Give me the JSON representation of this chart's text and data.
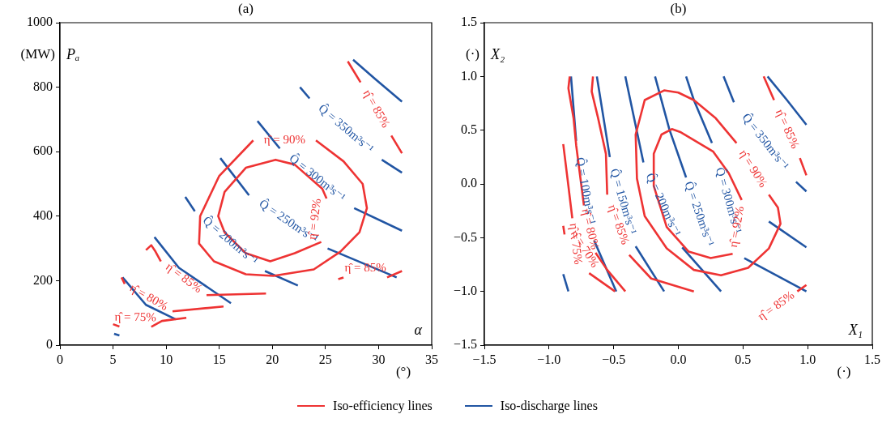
{
  "chart_data": [
    {
      "type": "line",
      "title": "(a)",
      "xlabel": "(°)",
      "ylabel": "(MW)",
      "xlim": [
        0,
        35
      ],
      "ylim": [
        0,
        1000
      ],
      "xticks": [
        0,
        5,
        10,
        15,
        20,
        25,
        30,
        35
      ],
      "yticks": [
        0,
        200,
        400,
        600,
        800,
        1000
      ],
      "legend": "bottom",
      "series": [
        {
          "name": "Iso-efficiency lines",
          "color": "#ee3333",
          "x": [
            24.1,
            26.7,
            28.5,
            28.9,
            28.2,
            26.4,
            23.9,
            20.1,
            17.5,
            14.5,
            13.1,
            13.2,
            15.0,
            18.2
          ],
          "values": [
            635,
            570,
            500,
            425,
            350,
            290,
            235,
            215,
            220,
            260,
            315,
            400,
            525,
            635
          ]
        },
        {
          "color": "#ee3333",
          "x": [
            25.1,
            24.7,
            22.1,
            20.3,
            17.5,
            15.5,
            14.9,
            15.5,
            17.5,
            19.8,
            22.1,
            24.6
          ],
          "values": [
            455,
            485,
            560,
            575,
            550,
            475,
            400,
            350,
            285,
            260,
            285,
            320
          ]
        },
        {
          "color": "#ee3333",
          "x": [
            27.1,
            28.3,
            null,
            31.2,
            32.2
          ],
          "values": [
            880,
            815,
            null,
            650,
            595
          ]
        },
        {
          "color": "#ee3333",
          "x": [
            26.2,
            26.7,
            null,
            30.8,
            32.2
          ],
          "values": [
            205,
            210,
            null,
            210,
            230
          ]
        },
        {
          "color": "#ee3333",
          "x": [
            8.1,
            8.6,
            9.0,
            9.5,
            null,
            13.8,
            19.4
          ],
          "values": [
            295,
            310,
            290,
            260,
            null,
            155,
            160
          ]
        },
        {
          "color": "#ee3333",
          "x": [
            5.8,
            6.1,
            null,
            10.6,
            15.4
          ],
          "values": [
            210,
            190,
            null,
            105,
            120
          ]
        },
        {
          "color": "#ee3333",
          "x": [
            5.0,
            5.6,
            null,
            8.6,
            9.6,
            11.9
          ],
          "values": [
            65,
            58,
            null,
            57,
            75,
            85
          ]
        },
        {
          "name": "Iso-discharge lines",
          "color": "#2155a3",
          "x": [
            27.6,
            29.7,
            32.2
          ],
          "values": [
            885,
            825,
            755
          ]
        },
        {
          "color": "#2155a3",
          "x": [
            22.6,
            23.5,
            null,
            30.3,
            32.2
          ],
          "values": [
            800,
            765,
            null,
            575,
            535
          ]
        },
        {
          "color": "#2155a3",
          "x": [
            18.6,
            20.7,
            null,
            27.7,
            32.2
          ],
          "values": [
            695,
            610,
            null,
            425,
            355
          ]
        },
        {
          "color": "#2155a3",
          "x": [
            15.1,
            17.8,
            null,
            25.2,
            31.7
          ],
          "values": [
            580,
            465,
            null,
            300,
            210
          ]
        },
        {
          "color": "#2155a3",
          "x": [
            11.8,
            12.7,
            null,
            19.3,
            22.4
          ],
          "values": [
            460,
            415,
            null,
            230,
            185
          ]
        },
        {
          "color": "#2155a3",
          "x": [
            8.9,
            11.2,
            16.1
          ],
          "values": [
            335,
            240,
            130
          ]
        },
        {
          "color": "#2155a3",
          "x": [
            5.9,
            8.1,
            10.9
          ],
          "values": [
            210,
            125,
            80
          ]
        },
        {
          "color": "#2155a3",
          "x": [
            5.1,
            5.6
          ],
          "values": [
            35,
            30
          ]
        }
      ],
      "annotations": [
        "Pₐ",
        "α",
        {
          "text": "η̂ = 90%",
          "x": 18.2,
          "y": 635
        },
        {
          "text": "η̂ = 85%",
          "x": 28.3,
          "y": 815
        },
        {
          "text": "Q̂ = 350m³s⁻¹",
          "x": 23.5,
          "y": 765
        },
        {
          "text": "Q̂ = 300m³s⁻¹",
          "x": 20.7,
          "y": 610
        },
        {
          "text": "Q̂ = 250m³s⁻¹",
          "x": 17.8,
          "y": 465
        },
        {
          "text": "η̂ = 92%",
          "x": 24.6,
          "y": 320
        },
        {
          "text": "Q̂ = 200m³s⁻¹",
          "x": 12.7,
          "y": 415
        },
        {
          "text": "η̂ = 85%",
          "x": 26.7,
          "y": 210
        },
        {
          "text": "η̂ = 85%",
          "x": 9.5,
          "y": 260
        },
        {
          "text": "η̂ = 80%",
          "x": 6.1,
          "y": 190
        },
        {
          "text": "η̂ = 75%",
          "x": 5.6,
          "y": 58
        }
      ]
    },
    {
      "type": "line",
      "title": "(b)",
      "xlabel": "(·)",
      "ylabel": "(·)",
      "xlim": [
        -1.5,
        1.5
      ],
      "ylim": [
        -1.5,
        1.5
      ],
      "xticks": [
        {
          "value": -1.5,
          "label": "−1.5"
        },
        {
          "value": -1.0,
          "label": "−1.0"
        },
        {
          "value": -0.5,
          "label": "−0.5"
        },
        {
          "value": 0,
          "label": "0.0"
        },
        {
          "value": 0.5,
          "label": "0.5"
        },
        {
          "value": 1.0,
          "label": "1.0"
        },
        {
          "value": 1.5,
          "label": "1.5"
        }
      ],
      "yticks": [
        {
          "value": -1.5,
          "label": "−1.5"
        },
        {
          "value": -1.0,
          "label": "−1.0"
        },
        {
          "value": -0.5,
          "label": "−0.5"
        },
        {
          "value": 0,
          "label": "0.0"
        },
        {
          "value": 0.5,
          "label": "0.5"
        },
        {
          "value": 1.0,
          "label": "1.0"
        },
        {
          "value": 1.5,
          "label": "1.5"
        }
      ],
      "series": [
        {
          "color": "#ee3333",
          "x": [
            0.45,
            0.29,
            0.12,
            0.0,
            -0.11,
            -0.26,
            -0.33,
            -0.32,
            -0.26,
            -0.09,
            0.12,
            0.33,
            0.54,
            0.7,
            0.79,
            0.77,
            0.7
          ],
          "values": [
            0.38,
            0.61,
            0.78,
            0.85,
            0.87,
            0.78,
            0.46,
            0.05,
            -0.3,
            -0.6,
            -0.8,
            -0.85,
            -0.78,
            -0.6,
            -0.37,
            -0.22,
            -0.1
          ]
        },
        {
          "color": "#ee3333",
          "x": [
            0.49,
            0.39,
            0.27,
            0.02,
            -0.05,
            -0.13,
            -0.19,
            -0.19,
            -0.09,
            0.08,
            0.25,
            0.42
          ],
          "values": [
            -0.15,
            0.1,
            0.3,
            0.48,
            0.51,
            0.46,
            0.28,
            -0.02,
            -0.4,
            -0.63,
            -0.69,
            -0.65
          ]
        },
        {
          "color": "#ee3333",
          "x": [
            0.66,
            0.74,
            null,
            0.94,
            0.99
          ],
          "values": [
            1.0,
            0.78,
            null,
            0.24,
            0.08
          ]
        },
        {
          "color": "#ee3333",
          "x": [
            0.92,
            0.99
          ],
          "values": [
            -1.0,
            -0.94
          ]
        },
        {
          "color": "#ee3333",
          "x": [
            -0.84,
            -0.85,
            -0.81,
            -0.79,
            -0.73,
            null,
            -0.64,
            -0.55,
            -0.41
          ],
          "values": [
            1.0,
            0.89,
            0.61,
            0.36,
            -0.2,
            null,
            -0.64,
            -0.8,
            -1.0
          ]
        },
        {
          "color": "#ee3333",
          "x": [
            -0.66,
            -0.67,
            -0.62,
            -0.56,
            -0.55,
            null,
            -0.38,
            -0.21,
            0.12
          ],
          "values": [
            1.0,
            0.86,
            0.61,
            0.28,
            -0.1,
            null,
            -0.66,
            -0.88,
            -1.0
          ]
        },
        {
          "color": "#ee3333",
          "x": [
            -0.82,
            -0.85,
            -0.89
          ],
          "values": [
            -0.32,
            -0.02,
            0.37
          ]
        },
        {
          "color": "#ee3333",
          "x": [
            -0.89,
            -0.88,
            null,
            -0.69,
            -0.49
          ],
          "values": [
            -0.39,
            -0.47,
            null,
            -0.83,
            -1.0
          ]
        },
        {
          "color": "#2155a3",
          "x": [
            -0.83,
            -0.79,
            null,
            -0.65,
            -0.48
          ],
          "values": [
            1.0,
            0.4,
            null,
            -0.53,
            -1.0
          ]
        },
        {
          "color": "#2155a3",
          "x": [
            -0.89,
            -0.85
          ],
          "values": [
            -0.84,
            -1.0
          ]
        },
        {
          "color": "#2155a3",
          "x": [
            -0.63,
            -0.53,
            null,
            -0.33,
            -0.11
          ],
          "values": [
            1.0,
            0.25,
            null,
            -0.58,
            -1.0
          ]
        },
        {
          "color": "#2155a3",
          "x": [
            -0.41,
            -0.27,
            null,
            0.03,
            0.33
          ],
          "values": [
            1.0,
            0.2,
            null,
            -0.59,
            -1.0
          ]
        },
        {
          "color": "#2155a3",
          "x": [
            0.06,
            -0.07,
            -0.18
          ],
          "values": [
            0.06,
            0.51,
            1.0
          ]
        },
        {
          "color": "#2155a3",
          "x": [
            0.06,
            0.12,
            0.26,
            null,
            0.51,
            0.99
          ],
          "values": [
            1.0,
            0.78,
            0.38,
            null,
            -0.69,
            -1.0
          ]
        },
        {
          "color": "#2155a3",
          "x": [
            0.35,
            0.43,
            null,
            0.91,
            0.99
          ],
          "values": [
            1.0,
            0.76,
            null,
            0.02,
            -0.07
          ]
        },
        {
          "color": "#2155a3",
          "x": [
            0.7,
            0.99
          ],
          "values": [
            -0.35,
            -0.59
          ]
        },
        {
          "color": "#2155a3",
          "x": [
            0.69,
            0.84,
            0.99
          ],
          "values": [
            1.0,
            0.78,
            0.55
          ]
        }
      ],
      "annotations": [
        "X₂",
        "X₁",
        {
          "text": "Q̂ = 100m³s⁻¹",
          "x": -0.79,
          "y": 0.4
        },
        {
          "text": "Q̂ = 150m³s⁻¹",
          "x": -0.53,
          "y": 0.25
        },
        {
          "text": "Q̂ = 200m³s⁻¹",
          "x": -0.27,
          "y": 0.2
        },
        {
          "text": "Q̂ = 250m³s⁻¹",
          "x": 0.06,
          "y": 0.06
        },
        {
          "text": "Q̂ = 300m³s⁻¹",
          "x": 0.26,
          "y": 0.38
        },
        {
          "text": "Q̂ = 350m³s⁻¹",
          "x": 0.43,
          "y": 0.76
        },
        {
          "text": "η̂ = 90%",
          "x": 0.7,
          "y": -0.1
        },
        {
          "text": "η̂ = 92%",
          "x": 0.42,
          "y": -0.65
        },
        {
          "text": "η̂ = 85%",
          "x": 0.74,
          "y": 0.78
        },
        {
          "text": "η̂ = 85%",
          "x": 0.92,
          "y": -1.0
        },
        {
          "text": "η̂ = 85%",
          "x": -0.55,
          "y": -0.1
        },
        {
          "text": "η̂ = 80%",
          "x": -0.73,
          "y": -0.2
        },
        {
          "text": "η̂ = 75%",
          "x": -0.82,
          "y": -0.32
        },
        {
          "text": "η̂ = 70%",
          "x": -0.88,
          "y": -0.47
        }
      ]
    }
  ]
}
